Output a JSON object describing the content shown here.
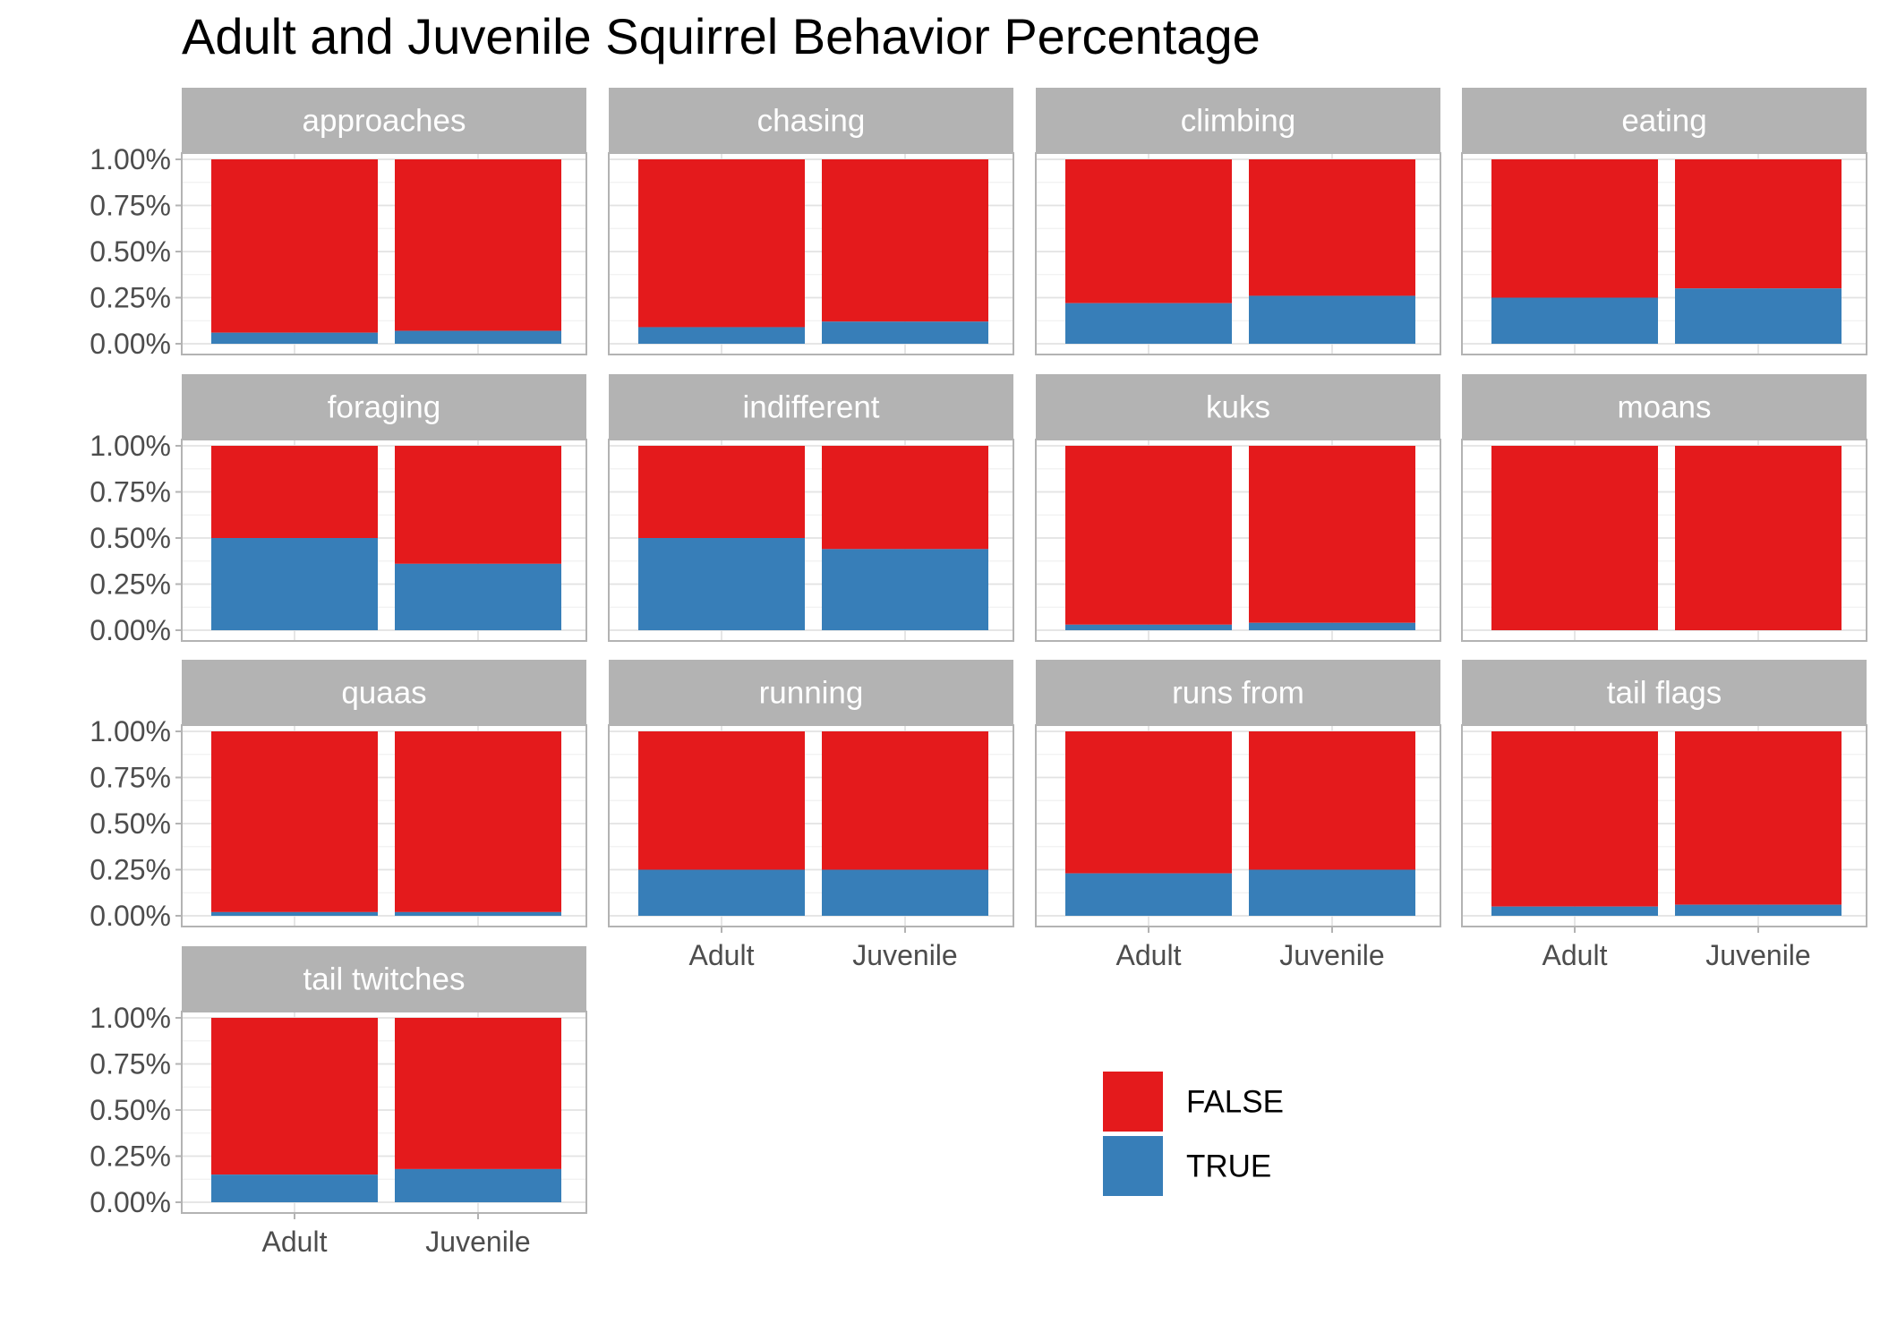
{
  "chart_data": {
    "type": "bar",
    "stacked": true,
    "normalized": true,
    "title": "Adult and Juvenile Squirrel Behavior Percentage",
    "xlabel": "",
    "ylabel": "",
    "categories": [
      "Adult",
      "Juvenile"
    ],
    "ylim": [
      0,
      1
    ],
    "y_ticks": [
      "0.00%",
      "0.25%",
      "0.50%",
      "0.75%",
      "1.00%"
    ],
    "grid": true,
    "legend_position": "bottom-right",
    "series_order": [
      "FALSE",
      "TRUE"
    ],
    "colors": {
      "FALSE": "#e41a1c",
      "TRUE": "#377eb8"
    },
    "legend": [
      {
        "label": "FALSE",
        "color": "#e41a1c"
      },
      {
        "label": "TRUE",
        "color": "#377eb8"
      }
    ],
    "facets": [
      {
        "name": "approaches",
        "true_share": [
          0.06,
          0.07
        ]
      },
      {
        "name": "chasing",
        "true_share": [
          0.09,
          0.12
        ]
      },
      {
        "name": "climbing",
        "true_share": [
          0.22,
          0.26
        ]
      },
      {
        "name": "eating",
        "true_share": [
          0.25,
          0.3
        ]
      },
      {
        "name": "foraging",
        "true_share": [
          0.5,
          0.36
        ]
      },
      {
        "name": "indifferent",
        "true_share": [
          0.5,
          0.44
        ]
      },
      {
        "name": "kuks",
        "true_share": [
          0.03,
          0.04
        ]
      },
      {
        "name": "moans",
        "true_share": [
          0.0,
          0.0
        ]
      },
      {
        "name": "quaas",
        "true_share": [
          0.02,
          0.02
        ]
      },
      {
        "name": "running",
        "true_share": [
          0.25,
          0.25
        ]
      },
      {
        "name": "runs from",
        "true_share": [
          0.23,
          0.25
        ]
      },
      {
        "name": "tail flags",
        "true_share": [
          0.05,
          0.06
        ]
      },
      {
        "name": "tail twitches",
        "true_share": [
          0.15,
          0.18
        ]
      }
    ]
  }
}
